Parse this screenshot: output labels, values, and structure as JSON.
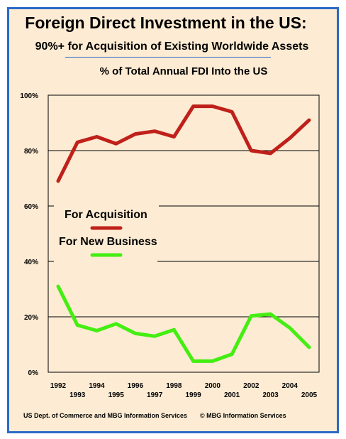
{
  "header": {
    "title": "Foreign Direct Investment in the US:",
    "subtitle": "90%+ for Acquisition of Existing Worldwide Assets"
  },
  "footer": {
    "source": "US Dept. of Commerce and MBG Information Services",
    "copyright": "© MBG Information Services"
  },
  "colors": {
    "frame_border": "#2a6ac8",
    "background": "#fdebd3",
    "acquisition": "#c0201a",
    "new_business": "#44ee11"
  },
  "chart_data": {
    "type": "line",
    "title": "% of Total Annual FDI Into the US",
    "x": [
      "1992",
      "1993",
      "1994",
      "1995",
      "1996",
      "1997",
      "1998",
      "1999",
      "2000",
      "2001",
      "2002",
      "2003",
      "2004",
      "2005"
    ],
    "y_ticks": [
      "0%",
      "20%",
      "40%",
      "60%",
      "80%",
      "100%"
    ],
    "ylim": [
      0,
      100
    ],
    "grid": "horizontal",
    "legend_position": "center-left",
    "series": [
      {
        "name": "For Acquisition",
        "color": "#c0201a",
        "values": [
          69,
          83,
          85,
          82.5,
          86,
          87,
          85,
          96,
          96,
          94,
          80,
          79,
          84.5,
          91
        ]
      },
      {
        "name": "For New Business",
        "color": "#44ee11",
        "values": [
          31,
          17,
          15,
          17.5,
          14,
          13,
          15.3,
          4,
          4,
          6.5,
          20.3,
          21,
          16,
          9
        ]
      }
    ]
  }
}
